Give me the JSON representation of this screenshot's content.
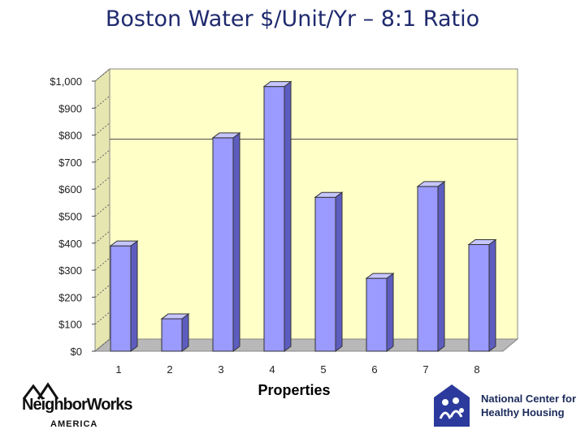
{
  "page": {
    "title": "Boston Water $/Unit/Yr – 8:1 Ratio"
  },
  "chart_data": {
    "type": "bar",
    "title": "Boston Water $/Unit/Yr – 8:1 Ratio",
    "xlabel": "Properties",
    "ylabel": "",
    "categories": [
      "1",
      "2",
      "3",
      "4",
      "5",
      "6",
      "7",
      "8"
    ],
    "values": [
      390,
      120,
      790,
      980,
      570,
      270,
      610,
      395
    ],
    "ylim": [
      0,
      1000
    ],
    "y_ticks": [
      0,
      100,
      200,
      300,
      400,
      500,
      600,
      700,
      800,
      900,
      1000
    ],
    "y_tick_labels": [
      "$0",
      "$100",
      "$200",
      "$300",
      "$400",
      "$500",
      "$600",
      "$700",
      "$800",
      "$900",
      "$1,000"
    ],
    "reference_line": 740,
    "grid": false,
    "legend": "none",
    "colors": {
      "bar_front": "#9a9aff",
      "bar_top": "#c6c6ff",
      "bar_side": "#5d5dc0",
      "plot_wall": "#ffffc8",
      "plot_floor": "#b8b8b8",
      "reference_line": "#444444",
      "title": "#1f2a6e"
    }
  },
  "logos": {
    "neighborworks": {
      "name": "NeighborWorks",
      "sub": "AMERICA",
      "icon": "house-icon"
    },
    "nchh": {
      "line1": "National Center for",
      "line2": "Healthy Housing",
      "icon": "family-icon"
    }
  }
}
